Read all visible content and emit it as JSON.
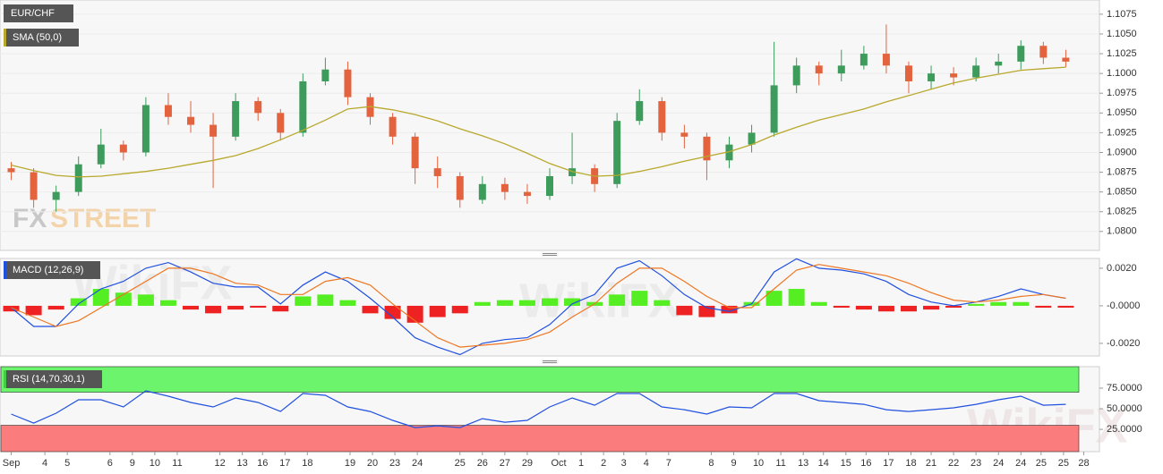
{
  "chart_data": [
    {
      "type": "candlestick",
      "title": "EUR/CHF",
      "open": [
        1.088,
        1.0875,
        1.084,
        1.085,
        1.0885,
        1.091,
        1.09,
        1.096,
        1.0945,
        1.0935,
        1.092,
        1.0965,
        1.095,
        1.0925,
        1.099,
        1.1005,
        1.097,
        1.0945,
        1.092,
        1.088,
        1.087,
        1.084,
        1.086,
        1.085,
        1.0845,
        1.087,
        1.088,
        1.086,
        1.094,
        1.0965,
        1.0925,
        1.092,
        1.089,
        1.091,
        1.0925,
        1.0985,
        1.101,
        1.1,
        1.101,
        1.1025,
        1.101,
        1.099,
        1.1,
        1.0995,
        1.101,
        1.1015,
        1.1035,
        1.102
      ],
      "high": [
        1.0888,
        1.088,
        1.0858,
        1.0895,
        1.093,
        1.0915,
        1.097,
        1.0975,
        1.0965,
        1.095,
        1.0975,
        1.097,
        1.0955,
        1.1,
        1.102,
        1.1015,
        1.0975,
        1.095,
        1.0925,
        1.0895,
        1.0875,
        1.087,
        1.0868,
        1.086,
        1.088,
        1.0925,
        1.0885,
        1.095,
        1.098,
        1.097,
        1.0935,
        1.0925,
        1.092,
        1.0935,
        1.104,
        1.102,
        1.1015,
        1.103,
        1.1035,
        1.1062,
        1.1015,
        1.101,
        1.1008,
        1.102,
        1.1025,
        1.1042,
        1.104,
        1.103
      ],
      "low": [
        1.0865,
        1.083,
        1.0825,
        1.0845,
        1.088,
        1.089,
        1.0895,
        1.0935,
        1.0925,
        1.0855,
        1.0915,
        1.094,
        1.0915,
        1.092,
        1.0985,
        1.096,
        1.0935,
        1.091,
        1.086,
        1.0855,
        1.083,
        1.0835,
        1.084,
        1.0835,
        1.084,
        1.086,
        1.085,
        1.0855,
        1.0935,
        1.0915,
        1.0905,
        1.0865,
        1.088,
        1.09,
        1.092,
        1.0975,
        1.0985,
        1.099,
        1.1005,
        1.1,
        1.0975,
        1.098,
        1.0985,
        1.099,
        1.1,
        1.1005,
        1.1012,
        1.1008
      ],
      "close": [
        1.0875,
        1.084,
        1.085,
        1.0885,
        1.091,
        1.09,
        1.096,
        1.0945,
        1.0935,
        1.092,
        1.0965,
        1.095,
        1.0925,
        1.099,
        1.1005,
        1.097,
        1.0945,
        1.092,
        1.088,
        1.087,
        1.084,
        1.086,
        1.085,
        1.0845,
        1.087,
        1.088,
        1.086,
        1.094,
        1.0965,
        1.0925,
        1.092,
        1.089,
        1.091,
        1.0925,
        1.0985,
        1.101,
        1.1,
        1.101,
        1.1025,
        1.101,
        1.099,
        1.1,
        1.0995,
        1.101,
        1.1015,
        1.1035,
        1.102,
        1.1015
      ],
      "up_color": "#3d9b5c",
      "down_color": "#e4633f",
      "series": [
        {
          "name": "SMA (50,0)",
          "color": "#b8a82c",
          "values": [
            1.0884,
            1.0877,
            1.0871,
            1.0869,
            1.087,
            1.0873,
            1.0876,
            1.088,
            1.0885,
            1.089,
            1.0896,
            1.0905,
            1.0916,
            1.0928,
            1.0941,
            1.0955,
            1.0958,
            1.0954,
            1.0948,
            1.094,
            1.093,
            1.0921,
            1.0911,
            1.0899,
            1.0886,
            1.0876,
            1.087,
            1.0871,
            1.0876,
            1.0882,
            1.0889,
            1.0895,
            1.0901,
            1.091,
            1.0922,
            1.0932,
            1.0941,
            1.0948,
            1.0955,
            1.0964,
            1.0972,
            1.098,
            1.0988,
            1.0994,
            1.0999,
            1.1004,
            1.1006,
            1.1008
          ]
        }
      ],
      "ylim": [
        1.0776,
        1.1093
      ],
      "yticks": [
        {
          "value": 1.08,
          "label": "1.0800"
        },
        {
          "value": 1.0825,
          "label": "1.0825"
        },
        {
          "value": 1.085,
          "label": "1.0850"
        },
        {
          "value": 1.0875,
          "label": "1.0875"
        },
        {
          "value": 1.09,
          "label": "1.0900"
        },
        {
          "value": 1.0925,
          "label": "1.0925"
        },
        {
          "value": 1.095,
          "label": "1.0950"
        },
        {
          "value": 1.0975,
          "label": "1.0975"
        },
        {
          "value": 1.1,
          "label": "1.1000"
        },
        {
          "value": 1.1025,
          "label": "1.1025"
        },
        {
          "value": 1.105,
          "label": "1.1050"
        },
        {
          "value": 1.1075,
          "label": "1.1075"
        }
      ],
      "grid": true
    },
    {
      "type": "macd",
      "title": "MACD (12,26,9)",
      "color": "#2050e0",
      "series": [
        {
          "color": "#2050e0",
          "values": [
            -0.0001,
            -0.0011,
            -0.0011,
            0.0001,
            0.0009,
            0.0013,
            0.002,
            0.0023,
            0.0018,
            0.0012,
            0.001,
            0.001,
            0.0001,
            0.0011,
            0.0018,
            0.0013,
            0.0004,
            -0.0006,
            -0.0017,
            -0.0022,
            -0.0026,
            -0.002,
            -0.0018,
            -0.0017,
            -0.001,
            0.0001,
            0.0006,
            0.002,
            0.0024,
            0.0016,
            0.0006,
            -0.0001,
            -0.0003,
            0.0001,
            0.0018,
            0.0025,
            0.002,
            0.0019,
            0.0017,
            0.0013,
            0.0006,
            0.0002,
            0.0,
            0.0002,
            0.0005,
            0.0009,
            0.0006,
            0.0004
          ]
        },
        {
          "color": "#ee7722",
          "values": [
            -0.0001,
            -0.0006,
            -0.0011,
            -0.0008,
            -0.0001,
            0.0006,
            0.0013,
            0.002,
            0.002,
            0.0017,
            0.0012,
            0.0011,
            0.0006,
            0.0006,
            0.0013,
            0.0015,
            0.0011,
            0.0001,
            -0.0008,
            -0.0017,
            -0.0022,
            -0.0021,
            -0.002,
            -0.0018,
            -0.0014,
            -0.0006,
            0.0001,
            0.0012,
            0.002,
            0.002,
            0.0013,
            0.0005,
            -0.0001,
            -0.0001,
            0.0009,
            0.0019,
            0.0022,
            0.002,
            0.0018,
            0.0016,
            0.0012,
            0.0007,
            0.0003,
            0.0002,
            0.0003,
            0.0005,
            0.0006,
            0.0004
          ]
        }
      ],
      "histogram": {
        "up_color": "#55ee22",
        "down_color": "#ee2222",
        "values": [
          -0.0003,
          -0.0005,
          -0.0002,
          0.0004,
          0.0009,
          0.0007,
          0.0006,
          0.0003,
          -0.0002,
          -0.0004,
          -0.0002,
          -0.0001,
          -0.0003,
          0.0005,
          0.0006,
          0.0003,
          -0.0004,
          -0.0007,
          -0.0009,
          -0.0006,
          -0.0004,
          0.0002,
          0.0003,
          0.0003,
          0.0004,
          0.0004,
          0.0002,
          0.0006,
          0.0008,
          0.0003,
          -0.0005,
          -0.0006,
          -0.0004,
          0.0002,
          0.0008,
          0.0009,
          0.0002,
          -0.0001,
          -0.0002,
          -0.0003,
          -0.0003,
          -0.0002,
          -0.0001,
          0.0001,
          0.0002,
          0.0002,
          -0.0001,
          -0.0001
        ]
      },
      "ylim": [
        -0.00267,
        0.00252
      ],
      "yticks": [
        {
          "value": 0.002,
          "label": "0.0020"
        },
        {
          "value": 0,
          "label": "-0.0000"
        },
        {
          "value": -0.002,
          "label": "-0.0020"
        }
      ]
    },
    {
      "type": "rsi",
      "title": "RSI (14,70,30,1)",
      "color": "#2050e0",
      "values": [
        43.5,
        32.6,
        44.6,
        60.9,
        60.9,
        52.2,
        71.7,
        65.2,
        57.6,
        52.2,
        63.0,
        57.6,
        46.7,
        68.5,
        66.3,
        52.2,
        46.7,
        35.9,
        27.2,
        29.3,
        27.2,
        38.0,
        33.7,
        35.9,
        52.2,
        63.0,
        54.3,
        68.5,
        68.5,
        52.2,
        48.9,
        43.5,
        52.2,
        51.1,
        68.5,
        68.5,
        59.8,
        57.6,
        55.4,
        48.9,
        46.7,
        48.9,
        51.1,
        55.4,
        60.9,
        65.2,
        54.3,
        55.4
      ],
      "upper_band": 70,
      "lower_band": 30,
      "upper_color": "#6cf56c",
      "lower_color": "#fb7c7c",
      "band_color": "#44cc44",
      "ylim": [
        -2,
        101
      ],
      "yticks": [
        {
          "value": 75,
          "label": "75.0000"
        },
        {
          "value": 50,
          "label": "50.0000"
        },
        {
          "value": 25,
          "label": "25.0000"
        }
      ],
      "xlim": [
        -0.5,
        48.5
      ],
      "xticks": [
        {
          "value": 0.0,
          "label": "Sep"
        },
        {
          "value": 1.5,
          "label": "4"
        },
        {
          "value": 2.5,
          "label": "5"
        },
        {
          "value": 4.4,
          "label": "6"
        },
        {
          "value": 5.4,
          "label": "9"
        },
        {
          "value": 6.4,
          "label": "10"
        },
        {
          "value": 7.4,
          "label": "11"
        },
        {
          "value": 9.3,
          "label": "12"
        },
        {
          "value": 10.3,
          "label": "13"
        },
        {
          "value": 11.2,
          "label": "16"
        },
        {
          "value": 12.2,
          "label": "17"
        },
        {
          "value": 13.2,
          "label": "18"
        },
        {
          "value": 15.1,
          "label": "19"
        },
        {
          "value": 16.1,
          "label": "20"
        },
        {
          "value": 17.1,
          "label": "23"
        },
        {
          "value": 18.1,
          "label": "24"
        },
        {
          "value": 20.0,
          "label": "25"
        },
        {
          "value": 21.0,
          "label": "26"
        },
        {
          "value": 22.0,
          "label": "27"
        },
        {
          "value": 23.0,
          "label": "29"
        },
        {
          "value": 24.4,
          "label": "Oct"
        },
        {
          "value": 25.4,
          "label": "1"
        },
        {
          "value": 26.4,
          "label": "2"
        },
        {
          "value": 27.3,
          "label": "3"
        },
        {
          "value": 28.3,
          "label": "4"
        },
        {
          "value": 29.3,
          "label": "7"
        },
        {
          "value": 31.2,
          "label": "8"
        },
        {
          "value": 32.2,
          "label": "9"
        },
        {
          "value": 33.3,
          "label": "10"
        },
        {
          "value": 34.3,
          "label": "11"
        },
        {
          "value": 35.3,
          "label": "13"
        },
        {
          "value": 36.2,
          "label": "14"
        },
        {
          "value": 37.2,
          "label": "15"
        },
        {
          "value": 38.1,
          "label": "16"
        },
        {
          "value": 39.1,
          "label": "17"
        },
        {
          "value": 40.1,
          "label": "18"
        },
        {
          "value": 41.0,
          "label": "21"
        },
        {
          "value": 42.0,
          "label": "22"
        },
        {
          "value": 43.0,
          "label": "23"
        },
        {
          "value": 44.0,
          "label": "24"
        },
        {
          "value": 45.0,
          "label": "24"
        },
        {
          "value": 45.9,
          "label": "25"
        },
        {
          "value": 46.9,
          "label": "25"
        },
        {
          "value": 47.8,
          "label": "28"
        }
      ]
    }
  ],
  "watermarks": {
    "fx": "FX",
    "street": "STREET",
    "wikifx": "WikiFX"
  }
}
